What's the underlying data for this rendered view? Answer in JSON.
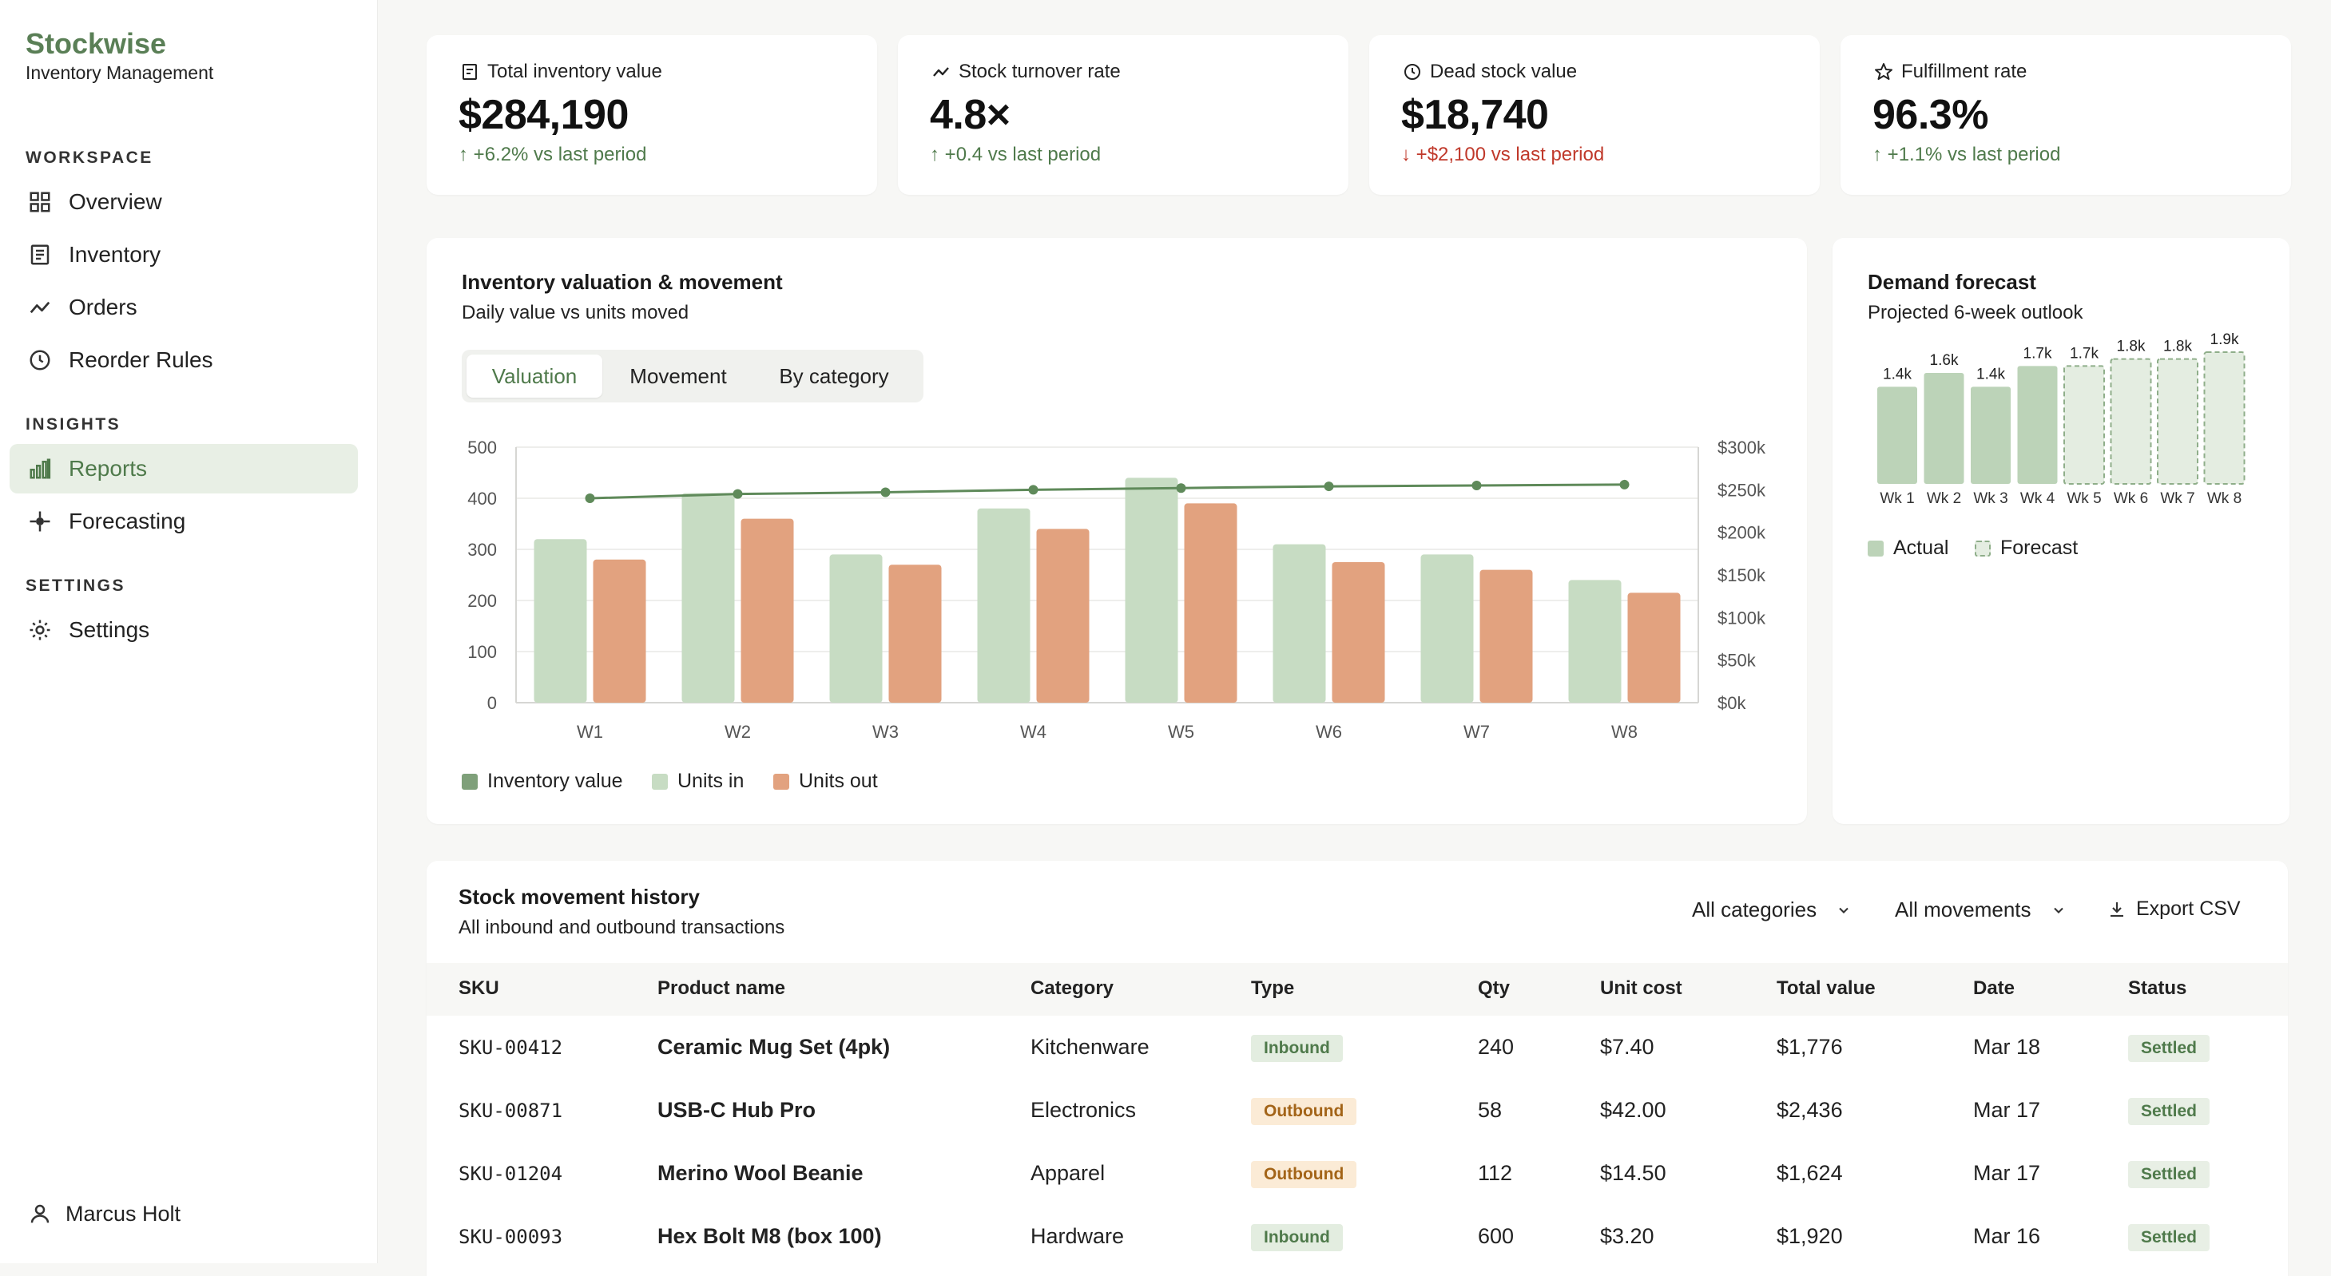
{
  "brand": {
    "name": "Stockwise",
    "subtitle": "Inventory Management"
  },
  "sidebar": {
    "sections": [
      {
        "label": "WORKSPACE"
      },
      {
        "label": "INSIGHTS"
      },
      {
        "label": "SETTINGS"
      }
    ],
    "items": [
      {
        "label": "Overview",
        "icon": "grid-icon"
      },
      {
        "label": "Inventory",
        "icon": "document-icon"
      },
      {
        "label": "Orders",
        "icon": "trend-icon"
      },
      {
        "label": "Reorder Rules",
        "icon": "clock-icon"
      },
      {
        "label": "Reports",
        "icon": "bar-chart-icon",
        "active": true
      },
      {
        "label": "Forecasting",
        "icon": "crosshair-icon"
      },
      {
        "label": "Settings",
        "icon": "sun-gear-icon"
      }
    ],
    "user": {
      "name": "Marcus Holt"
    }
  },
  "kpis": [
    {
      "label": "Total inventory value",
      "value": "$284,190",
      "delta": "+6.2% vs last period",
      "direction": "up"
    },
    {
      "label": "Stock turnover rate",
      "value": "4.8×",
      "delta": "+0.4 vs last period",
      "direction": "up"
    },
    {
      "label": "Dead stock value",
      "value": "$18,740",
      "delta": "+$2,100 vs last period",
      "direction": "down"
    },
    {
      "label": "Fulfillment rate",
      "value": "96.3%",
      "delta": "+1.1% vs last period",
      "direction": "up"
    }
  ],
  "valuation_card": {
    "title": "Inventory valuation & movement",
    "subtitle": "Daily value vs units moved",
    "tabs": [
      {
        "label": "Valuation",
        "active": true
      },
      {
        "label": "Movement"
      },
      {
        "label": "By category"
      }
    ],
    "legend": [
      {
        "label": "Inventory value",
        "color": "#7fa07a"
      },
      {
        "label": "Units in",
        "color": "#c7dcc3"
      },
      {
        "label": "Units out",
        "color": "#e2a27f"
      }
    ]
  },
  "forecast_card": {
    "title": "Demand forecast",
    "subtitle": "Projected 6-week outlook",
    "legend": [
      {
        "label": "Actual"
      },
      {
        "label": "Forecast"
      }
    ]
  },
  "chart_data": [
    {
      "type": "bar",
      "categories": [
        "W1",
        "W2",
        "W3",
        "W4",
        "W5",
        "W6",
        "W7",
        "W8"
      ],
      "series": [
        {
          "name": "Units in",
          "values": [
            320,
            410,
            290,
            380,
            440,
            310,
            290,
            240
          ],
          "color": "#c7dcc3"
        },
        {
          "name": "Units out",
          "values": [
            280,
            360,
            270,
            340,
            390,
            275,
            260,
            215
          ],
          "color": "#e2a27f"
        },
        {
          "name": "Inventory value",
          "type": "line",
          "axis": "right",
          "values": [
            240000,
            245000,
            247000,
            250000,
            252000,
            254000,
            255000,
            256000
          ],
          "color": "#5f8a5a"
        }
      ],
      "y_ticks": [
        "0",
        "100",
        "200",
        "300",
        "400",
        "500"
      ],
      "y2_ticks": [
        "$0k",
        "$50k",
        "$100k",
        "$150k",
        "$200k",
        "$250k",
        "$300k"
      ],
      "ylim": [
        0,
        500
      ],
      "y2lim": [
        0,
        300000
      ],
      "grid": true,
      "legend": "bottom-left"
    },
    {
      "type": "bar",
      "categories": [
        "Wk 1",
        "Wk 2",
        "Wk 3",
        "Wk 4",
        "Wk 5",
        "Wk 6",
        "Wk 7",
        "Wk 8"
      ],
      "values": [
        1400,
        1600,
        1400,
        1700,
        1700,
        1800,
        1800,
        1900
      ],
      "labels": [
        "1.4k",
        "1.6k",
        "1.4k",
        "1.7k",
        "1.7k",
        "1.8k",
        "1.8k",
        "1.9k"
      ],
      "kind": [
        "actual",
        "actual",
        "actual",
        "actual",
        "forecast",
        "forecast",
        "forecast",
        "forecast"
      ],
      "legend": "bottom-left"
    }
  ],
  "history": {
    "title": "Stock movement history",
    "subtitle": "All inbound and outbound transactions",
    "filters": {
      "category": "All categories",
      "movement": "All movements",
      "export": "Export CSV"
    },
    "columns": [
      "SKU",
      "Product name",
      "Category",
      "Type",
      "Qty",
      "Unit cost",
      "Total value",
      "Date",
      "Status"
    ],
    "rows": [
      {
        "sku": "SKU-00412",
        "product": "Ceramic Mug Set (4pk)",
        "category": "Kitchenware",
        "type": "Inbound",
        "qty": "240",
        "unit_cost": "$7.40",
        "total": "$1,776",
        "date": "Mar 18",
        "status": "Settled"
      },
      {
        "sku": "SKU-00871",
        "product": "USB-C Hub Pro",
        "category": "Electronics",
        "type": "Outbound",
        "qty": "58",
        "unit_cost": "$42.00",
        "total": "$2,436",
        "date": "Mar 17",
        "status": "Settled"
      },
      {
        "sku": "SKU-01204",
        "product": "Merino Wool Beanie",
        "category": "Apparel",
        "type": "Outbound",
        "qty": "112",
        "unit_cost": "$14.50",
        "total": "$1,624",
        "date": "Mar 17",
        "status": "Settled"
      },
      {
        "sku": "SKU-00093",
        "product": "Hex Bolt M8 (box 100)",
        "category": "Hardware",
        "type": "Inbound",
        "qty": "600",
        "unit_cost": "$3.20",
        "total": "$1,920",
        "date": "Mar 16",
        "status": "Settled"
      }
    ]
  }
}
